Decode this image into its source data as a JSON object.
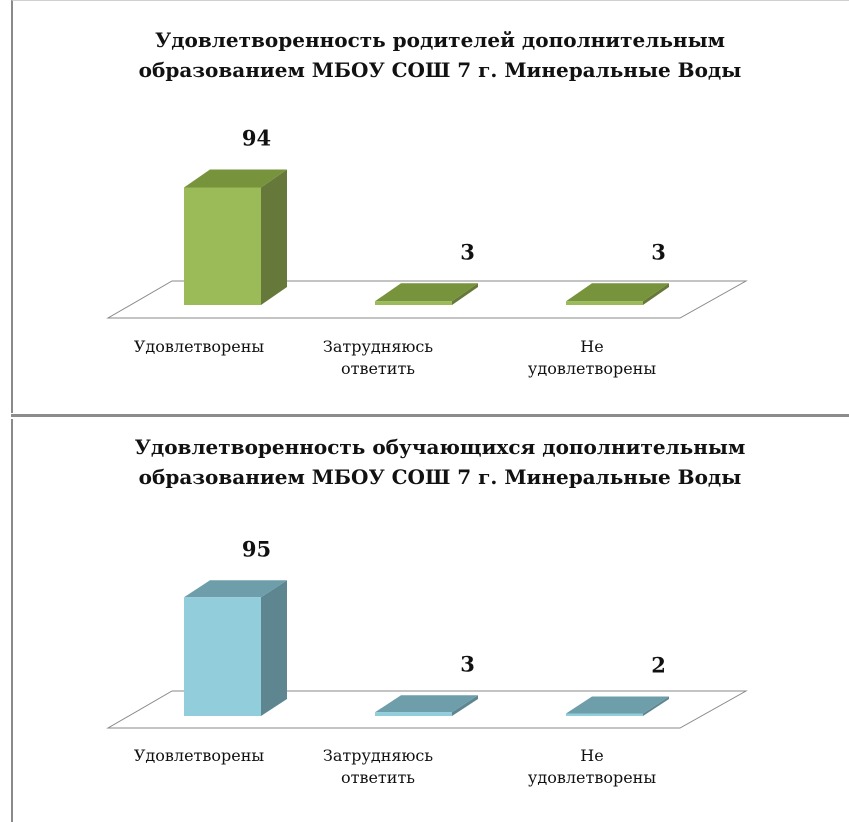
{
  "chart_data": [
    {
      "type": "bar",
      "title": [
        "Удовлетворенность родителей дополнительным",
        "образованием МБОУ СОШ 7 г. Минеральные Воды"
      ],
      "categories": [
        [
          "Удовлетворены"
        ],
        [
          "Затрудняюсь",
          "ответить"
        ],
        [
          "Не",
          "удовлетворены"
        ]
      ],
      "values": [
        94,
        3,
        3
      ],
      "ylim": [
        0,
        100
      ],
      "colors": {
        "front": "#9bbb59",
        "side": "#66793a",
        "top": "#77933c"
      },
      "grid": false,
      "legend": "none"
    },
    {
      "type": "bar",
      "title": [
        "Удовлетворенность обучающихся дополнительным",
        "образованием МБОУ СОШ 7 г. Минеральные Воды"
      ],
      "categories": [
        [
          "Удовлетворены"
        ],
        [
          "Затрудняюсь",
          "ответить"
        ],
        [
          "Не",
          "удовлетворены"
        ]
      ],
      "values": [
        95,
        3,
        2
      ],
      "ylim": [
        0,
        100
      ],
      "colors": {
        "front": "#92cddc",
        "side": "#5e8691",
        "top": "#6f9eab"
      },
      "grid": false,
      "legend": "none"
    }
  ]
}
